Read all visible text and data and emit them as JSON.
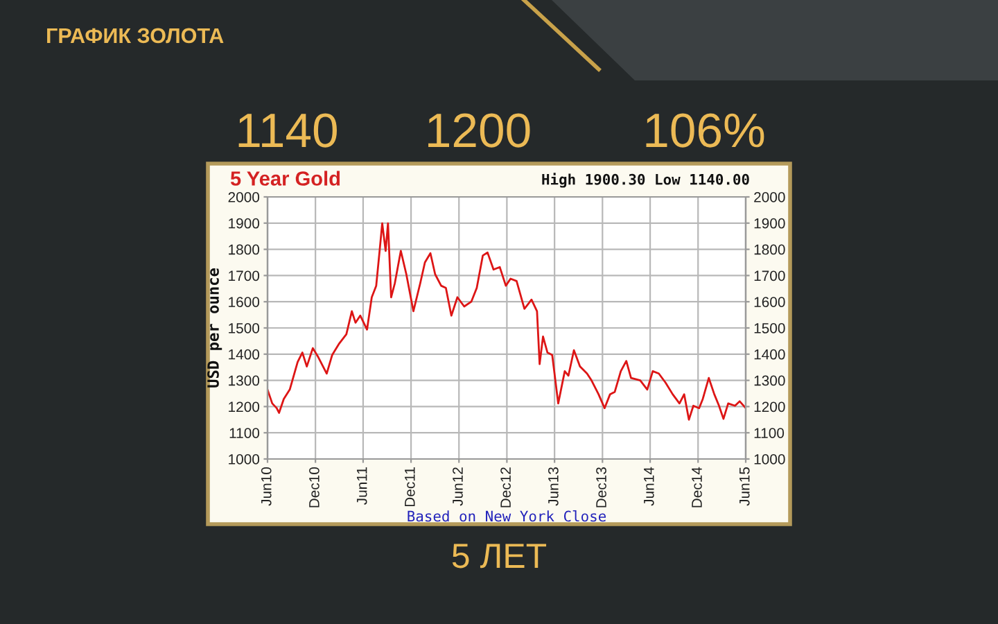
{
  "chart_data": {
    "type": "line",
    "title": "5 Year Gold",
    "subtitle": "High 1900.30 Low 1140.00",
    "xlabel": "Based on New York Close",
    "ylabel": "USD per ounce",
    "annotations": [
      "ГРАФИК ЗОЛОТА",
      "1140",
      "1200",
      "106%",
      "5 ЛЕТ"
    ],
    "x": [
      "2010-06-01",
      "2010-06-19",
      "2010-07-06",
      "2010-07-15",
      "2010-08-02",
      "2010-08-25",
      "2010-09-24",
      "2010-10-12",
      "2010-10-29",
      "2010-11-21",
      "2010-12-12",
      "2011-01-13",
      "2011-02-03",
      "2011-03-02",
      "2011-03-29",
      "2011-04-19",
      "2011-05-03",
      "2011-05-21",
      "2011-06-16",
      "2011-07-04",
      "2011-07-21",
      "2011-08-03",
      "2011-08-13",
      "2011-08-26",
      "2011-09-04",
      "2011-09-16",
      "2011-09-30",
      "2011-10-23",
      "2011-11-13",
      "2011-12-10",
      "2012-01-05",
      "2012-01-23",
      "2012-02-13",
      "2012-03-02",
      "2012-03-25",
      "2012-04-12",
      "2012-05-03",
      "2012-05-26",
      "2012-06-21",
      "2012-07-18",
      "2012-08-08",
      "2012-08-31",
      "2012-09-18",
      "2012-10-11",
      "2012-11-04",
      "2012-11-27",
      "2012-12-15",
      "2013-01-07",
      "2013-02-06",
      "2013-03-05",
      "2013-03-26",
      "2013-04-05",
      "2013-04-18",
      "2013-05-05",
      "2013-05-23",
      "2013-06-15",
      "2013-07-10",
      "2013-07-24",
      "2013-08-14",
      "2013-09-06",
      "2013-10-03",
      "2013-10-20",
      "2013-11-16",
      "2013-12-09",
      "2013-12-30",
      "2014-01-17",
      "2014-02-09",
      "2014-03-02",
      "2014-03-20",
      "2014-04-24",
      "2014-05-21",
      "2014-06-11",
      "2014-07-04",
      "2014-07-30",
      "2014-08-26",
      "2014-09-21",
      "2014-10-09",
      "2014-10-27",
      "2014-11-13",
      "2014-12-05",
      "2014-12-19",
      "2015-01-11",
      "2015-02-01",
      "2015-02-19",
      "2015-03-08",
      "2015-03-26",
      "2015-04-21",
      "2015-05-09",
      "2015-06-01"
    ],
    "values": [
      1265,
      1212,
      1194,
      1176,
      1229,
      1265,
      1370,
      1406,
      1353,
      1423,
      1388,
      1326,
      1397,
      1441,
      1476,
      1564,
      1520,
      1547,
      1494,
      1617,
      1661,
      1794,
      1899,
      1794,
      1899,
      1617,
      1670,
      1794,
      1705,
      1564,
      1670,
      1750,
      1785,
      1705,
      1661,
      1653,
      1547,
      1617,
      1582,
      1600,
      1653,
      1776,
      1788,
      1723,
      1732,
      1661,
      1688,
      1679,
      1573,
      1608,
      1564,
      1362,
      1467,
      1406,
      1397,
      1212,
      1335,
      1318,
      1415,
      1353,
      1326,
      1300,
      1247,
      1194,
      1247,
      1256,
      1335,
      1374,
      1309,
      1300,
      1265,
      1335,
      1326,
      1291,
      1247,
      1212,
      1247,
      1150,
      1203,
      1194,
      1229,
      1309,
      1247,
      1203,
      1153,
      1212,
      1203,
      1220,
      1194
    ],
    "color": "#dd1515",
    "xlim": [
      "2010-06-01",
      "2015-06-01"
    ],
    "xticks": [
      {
        "value": "2010-06-01",
        "label": "Jun10"
      },
      {
        "value": "2010-12-01",
        "label": "Dec10"
      },
      {
        "value": "2011-06-01",
        "label": "Jun11"
      },
      {
        "value": "2011-12-01",
        "label": "Dec11"
      },
      {
        "value": "2012-06-01",
        "label": "Jun12"
      },
      {
        "value": "2012-12-01",
        "label": "Dec12"
      },
      {
        "value": "2013-06-01",
        "label": "Jun13"
      },
      {
        "value": "2013-12-01",
        "label": "Dec13"
      },
      {
        "value": "2014-06-01",
        "label": "Jun14"
      },
      {
        "value": "2014-12-01",
        "label": "Dec14"
      },
      {
        "value": "2015-06-01",
        "label": "Jun15"
      }
    ],
    "ylim": [
      1000,
      2000
    ],
    "yticks": [
      1000,
      1100,
      1200,
      1300,
      1400,
      1500,
      1600,
      1700,
      1800,
      1900,
      2000
    ],
    "y2lim": [
      1000,
      2000
    ],
    "y2ticks": [
      1000,
      1100,
      1200,
      1300,
      1400,
      1500,
      1600,
      1700,
      1800,
      1900,
      2000
    ],
    "grid": true
  }
}
